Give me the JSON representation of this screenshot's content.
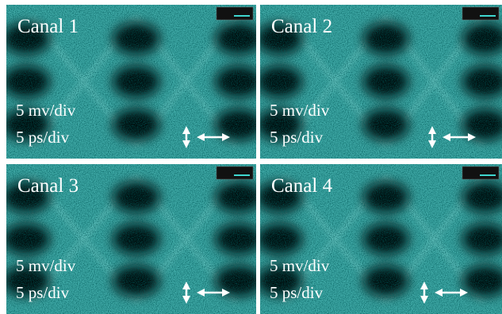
{
  "panels": [
    {
      "title": "Canal 1",
      "vscale": "5 mv/div",
      "hscale": "5 ps/div"
    },
    {
      "title": "Canal 2",
      "vscale": "5 mv/div",
      "hscale": "5 ps/div"
    },
    {
      "title": "Canal 3",
      "vscale": "5 mv/div",
      "hscale": "5 ps/div"
    },
    {
      "title": "Canal 4",
      "vscale": "5 mv/div",
      "hscale": "5 ps/div"
    }
  ]
}
